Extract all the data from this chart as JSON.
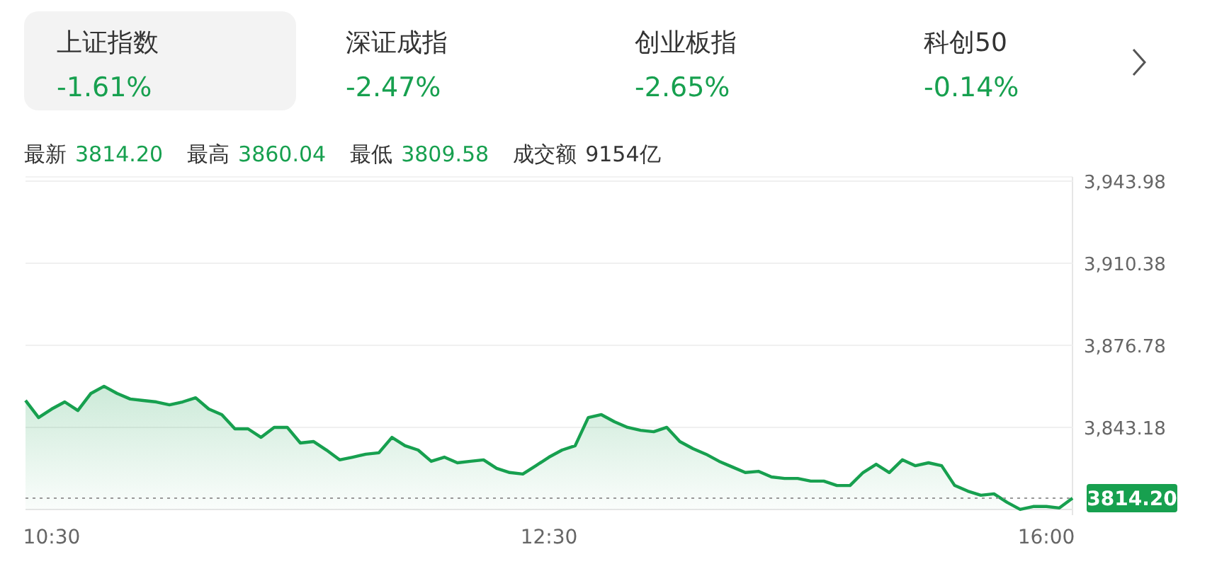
{
  "chart_data": {
    "type": "area",
    "color": "#17a04f",
    "annotations": [
      "上证指数",
      "-1.61%",
      "深证成指",
      "-2.47%",
      "创业板指",
      "-2.65%",
      "科创50",
      "-0.14%",
      "最新",
      "3814.20",
      "最高",
      "3860.04",
      "最低",
      "3809.58",
      "成交额",
      "9154亿"
    ],
    "categories": [
      null,
      null,
      "10:30",
      null,
      null,
      null,
      null,
      null,
      null,
      null,
      null,
      null,
      null,
      null,
      null,
      null,
      null,
      null,
      null,
      null,
      null,
      null,
      null,
      null,
      null,
      null,
      null,
      null,
      null,
      null,
      null,
      null,
      null,
      null,
      null,
      null,
      null,
      null,
      null,
      null,
      "12:30",
      null,
      null,
      null,
      null,
      null,
      null,
      null,
      null,
      null,
      null,
      null,
      null,
      null,
      null,
      null,
      null,
      null,
      null,
      null,
      null,
      null,
      null,
      null,
      null,
      null,
      null,
      null,
      null,
      null,
      null,
      null,
      null,
      null,
      null,
      null,
      null,
      null,
      "16:00",
      null,
      null
    ],
    "values": [
      3854.2,
      3847.2,
      3850.7,
      3853.6,
      3850.1,
      3857.1,
      3860.0,
      3857.1,
      3854.8,
      3854.2,
      3853.6,
      3852.4,
      3853.6,
      3855.3,
      3850.7,
      3848.4,
      3842.6,
      3842.6,
      3839.1,
      3843.2,
      3843.2,
      3836.8,
      3837.4,
      3833.9,
      3829.9,
      3831.0,
      3832.2,
      3832.8,
      3839.1,
      3835.7,
      3833.9,
      3829.3,
      3831.0,
      3828.7,
      3829.3,
      3829.9,
      3826.4,
      3824.7,
      3824.1,
      3827.5,
      3831.0,
      3833.9,
      3835.7,
      3847.2,
      3848.4,
      3845.5,
      3843.2,
      3842.0,
      3841.4,
      3843.2,
      3837.4,
      3834.5,
      3832.2,
      3829.3,
      3827.0,
      3824.7,
      3825.2,
      3822.9,
      3822.3,
      3822.3,
      3821.2,
      3821.2,
      3819.4,
      3819.4,
      3824.7,
      3828.1,
      3824.7,
      3829.9,
      3827.5,
      3828.7,
      3827.5,
      3819.4,
      3817.1,
      3815.4,
      3816.0,
      3812.5,
      3809.6,
      3810.8,
      3810.8,
      3810.2,
      3814.2
    ],
    "ylim": [
      3809.58,
      3943.98
    ],
    "yticks": [
      {
        "value": 3843.18,
        "label": "3,843.18"
      },
      {
        "value": 3876.78,
        "label": "3,876.78"
      },
      {
        "value": 3910.38,
        "label": "3,910.38"
      },
      {
        "value": 3943.98,
        "label": "3,943.98"
      }
    ],
    "grid": "y",
    "ref_lines": [
      {
        "axis": "y",
        "value": 3814.2,
        "label": "3814.20",
        "line_style": "dotted"
      }
    ]
  }
}
